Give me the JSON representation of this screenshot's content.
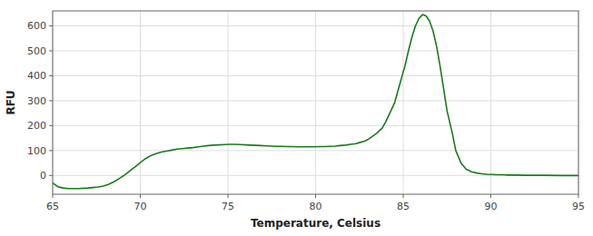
{
  "chart_data": {
    "type": "line",
    "xlabel": "Temperature, Celsius",
    "ylabel": "RFU",
    "color": "#1a7a1a",
    "grid": true,
    "xlim": [
      65,
      95
    ],
    "ylim": [
      -75,
      660
    ],
    "xticks": [
      65,
      70,
      75,
      80,
      85,
      90,
      95
    ],
    "yticks": [
      0,
      100,
      200,
      300,
      400,
      500,
      600
    ],
    "x": [
      65.0,
      65.3,
      65.6,
      65.9,
      66.2,
      66.5,
      66.8,
      67.0,
      67.3,
      67.6,
      67.9,
      68.2,
      68.5,
      68.8,
      69.1,
      69.4,
      69.7,
      70.0,
      70.3,
      70.6,
      70.9,
      71.2,
      71.5,
      71.8,
      72.1,
      72.4,
      72.7,
      73.0,
      73.3,
      73.6,
      73.9,
      74.2,
      74.5,
      74.8,
      75.1,
      75.4,
      75.7,
      76.0,
      76.3,
      76.6,
      76.9,
      77.2,
      77.5,
      77.8,
      78.1,
      78.4,
      78.7,
      79.0,
      79.3,
      79.6,
      79.9,
      80.2,
      80.5,
      80.8,
      81.1,
      81.4,
      81.7,
      82.0,
      82.3,
      82.5,
      82.8,
      83.0,
      83.2,
      83.5,
      83.8,
      84.0,
      84.2,
      84.5,
      84.7,
      84.9,
      85.1,
      85.3,
      85.5,
      85.7,
      85.9,
      86.1,
      86.3,
      86.5,
      86.7,
      86.9,
      87.1,
      87.3,
      87.5,
      87.8,
      88.0,
      88.3,
      88.6,
      88.9,
      89.2,
      89.5,
      89.8,
      90.1,
      90.4,
      90.7,
      91.0,
      91.5,
      92.0,
      92.5,
      93.0,
      94.0,
      95.0
    ],
    "values": [
      -30,
      -45,
      -50,
      -52,
      -52,
      -52,
      -51,
      -50,
      -48,
      -46,
      -42,
      -35,
      -25,
      -12,
      2,
      18,
      35,
      52,
      68,
      80,
      88,
      94,
      98,
      102,
      106,
      108,
      110,
      112,
      115,
      118,
      120,
      122,
      123,
      124,
      125,
      125,
      124,
      123,
      122,
      121,
      120,
      119,
      118,
      117,
      117,
      116,
      116,
      115,
      115,
      115,
      115,
      116,
      116,
      117,
      118,
      120,
      122,
      125,
      128,
      132,
      138,
      145,
      155,
      170,
      190,
      215,
      245,
      290,
      340,
      390,
      440,
      500,
      555,
      600,
      630,
      645,
      640,
      620,
      580,
      520,
      440,
      350,
      260,
      170,
      100,
      50,
      25,
      15,
      10,
      7,
      5,
      4,
      3,
      3,
      2,
      2,
      1,
      1,
      1,
      0,
      0
    ]
  }
}
